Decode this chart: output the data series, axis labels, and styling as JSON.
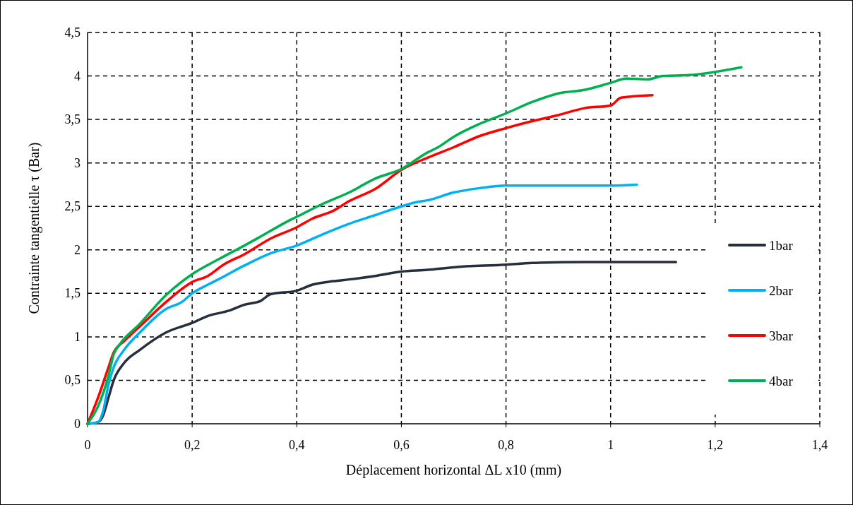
{
  "chart_data": {
    "type": "line",
    "xlabel": "Déplacement horizontal ΔL x10 (mm)",
    "ylabel": "Contrainte tangentielle τ (Bar)",
    "xlim": [
      0,
      1.4
    ],
    "ylim": [
      0,
      4.5
    ],
    "xticks": [
      {
        "value": 0,
        "label": "0"
      },
      {
        "value": 0.2,
        "label": "0,2"
      },
      {
        "value": 0.4,
        "label": "0,4"
      },
      {
        "value": 0.6,
        "label": "0,6"
      },
      {
        "value": 0.8,
        "label": "0,8"
      },
      {
        "value": 1,
        "label": "1"
      },
      {
        "value": 1.2,
        "label": "1,2"
      },
      {
        "value": 1.4,
        "label": "1,4"
      }
    ],
    "yticks": [
      {
        "value": 0,
        "label": "0"
      },
      {
        "value": 0.5,
        "label": "0,5"
      },
      {
        "value": 1,
        "label": "1"
      },
      {
        "value": 1.5,
        "label": "1,5"
      },
      {
        "value": 2,
        "label": "2"
      },
      {
        "value": 2.5,
        "label": "2,5"
      },
      {
        "value": 3,
        "label": "3"
      },
      {
        "value": 3.5,
        "label": "3,5"
      },
      {
        "value": 4,
        "label": "4"
      },
      {
        "value": 4.5,
        "label": "4,5"
      }
    ],
    "grid": true,
    "legend": "right",
    "line_style": "solid",
    "marker": "none",
    "series": [
      {
        "name": "1bar",
        "color": "#262f3d",
        "x": [
          0,
          0.02,
          0.03,
          0.04,
          0.05,
          0.07,
          0.1,
          0.15,
          0.2,
          0.23,
          0.27,
          0.3,
          0.33,
          0.35,
          0.4,
          0.43,
          0.47,
          0.5,
          0.55,
          0.6,
          0.65,
          0.7,
          0.8,
          0.85,
          0.95,
          1.125
        ],
        "values": [
          0,
          0.02,
          0.1,
          0.3,
          0.5,
          0.7,
          0.85,
          1.05,
          1.16,
          1.24,
          1.3,
          1.37,
          1.41,
          1.49,
          1.53,
          1.6,
          1.64,
          1.66,
          1.7,
          1.75,
          1.77,
          1.8,
          1.83,
          1.85,
          1.86,
          1.86
        ]
      },
      {
        "name": "2bar",
        "color": "#00b0f0",
        "x": [
          0,
          0.02,
          0.03,
          0.04,
          0.05,
          0.07,
          0.1,
          0.15,
          0.18,
          0.2,
          0.23,
          0.25,
          0.3,
          0.35,
          0.4,
          0.45,
          0.5,
          0.55,
          0.6,
          0.63,
          0.65,
          0.7,
          0.75,
          0.8,
          0.9,
          1.0,
          1.05
        ],
        "values": [
          0,
          0.02,
          0.15,
          0.45,
          0.65,
          0.85,
          1.05,
          1.32,
          1.4,
          1.5,
          1.6,
          1.66,
          1.82,
          1.96,
          2.05,
          2.18,
          2.3,
          2.4,
          2.5,
          2.55,
          2.57,
          2.66,
          2.71,
          2.74,
          2.74,
          2.74,
          2.75
        ]
      },
      {
        "name": "3bar",
        "color": "#ff0000",
        "x": [
          0,
          0.02,
          0.04,
          0.05,
          0.07,
          0.1,
          0.15,
          0.2,
          0.23,
          0.26,
          0.3,
          0.35,
          0.4,
          0.43,
          0.47,
          0.5,
          0.55,
          0.6,
          0.65,
          0.7,
          0.75,
          0.8,
          0.85,
          0.9,
          0.95,
          1.0,
          1.02,
          1.08
        ],
        "values": [
          0,
          0.3,
          0.65,
          0.82,
          0.95,
          1.12,
          1.4,
          1.63,
          1.7,
          1.83,
          1.95,
          2.13,
          2.26,
          2.36,
          2.45,
          2.56,
          2.7,
          2.92,
          3.06,
          3.18,
          3.31,
          3.4,
          3.48,
          3.55,
          3.63,
          3.66,
          3.75,
          3.78
        ]
      },
      {
        "name": "4bar",
        "color": "#00b050",
        "x": [
          0,
          0.02,
          0.04,
          0.05,
          0.06,
          0.1,
          0.15,
          0.2,
          0.25,
          0.3,
          0.33,
          0.38,
          0.4,
          0.45,
          0.5,
          0.55,
          0.6,
          0.65,
          0.67,
          0.7,
          0.75,
          0.8,
          0.85,
          0.9,
          0.95,
          1.0,
          1.03,
          1.07,
          1.1,
          1.15,
          1.25
        ],
        "values": [
          0,
          0.2,
          0.55,
          0.8,
          0.9,
          1.15,
          1.48,
          1.72,
          1.89,
          2.05,
          2.15,
          2.32,
          2.38,
          2.53,
          2.66,
          2.82,
          2.93,
          3.12,
          3.18,
          3.3,
          3.45,
          3.57,
          3.7,
          3.8,
          3.84,
          3.92,
          3.97,
          3.96,
          4.0,
          4.01,
          4.1
        ]
      }
    ]
  }
}
